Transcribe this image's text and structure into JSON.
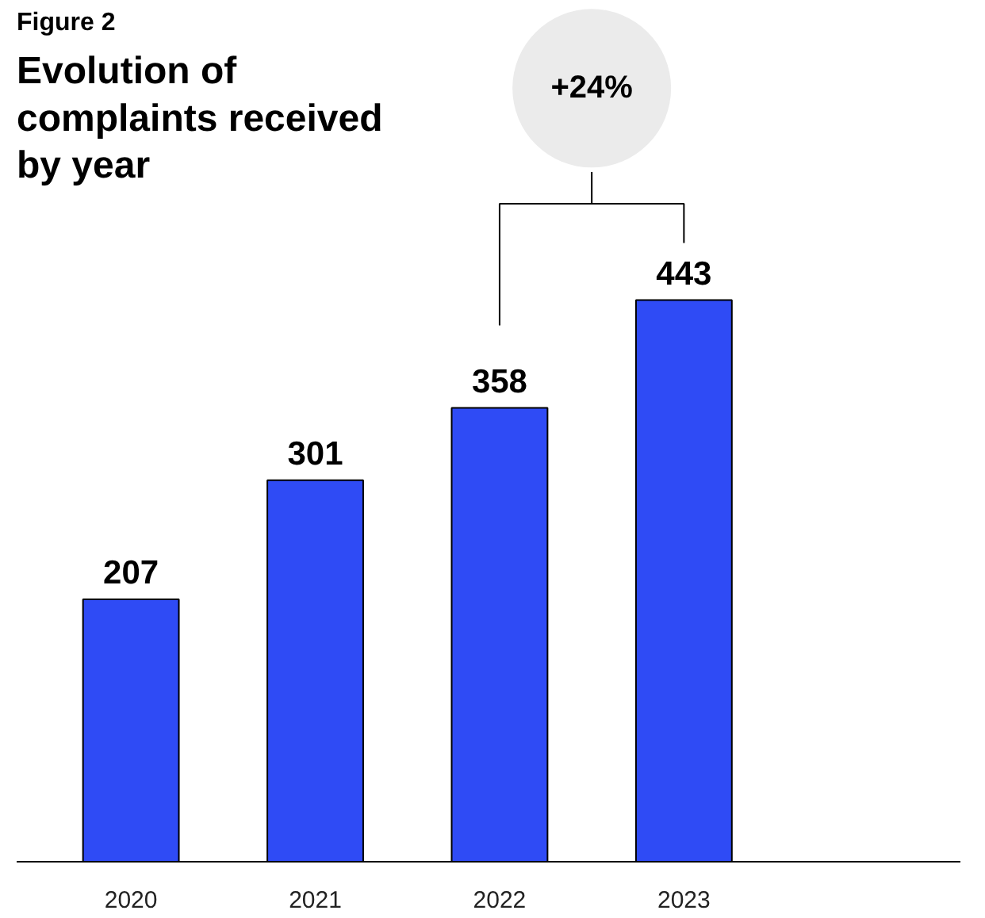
{
  "chart_data": {
    "type": "bar",
    "title": "Evolution of complaints received by year",
    "annotations": [
      "Figure 2",
      "+24%"
    ],
    "categories": [
      "2020",
      "2021",
      "2022",
      "2023"
    ],
    "values": [
      207,
      301,
      358,
      443
    ],
    "color": "#2f4bf5",
    "data_labels": true
  }
}
